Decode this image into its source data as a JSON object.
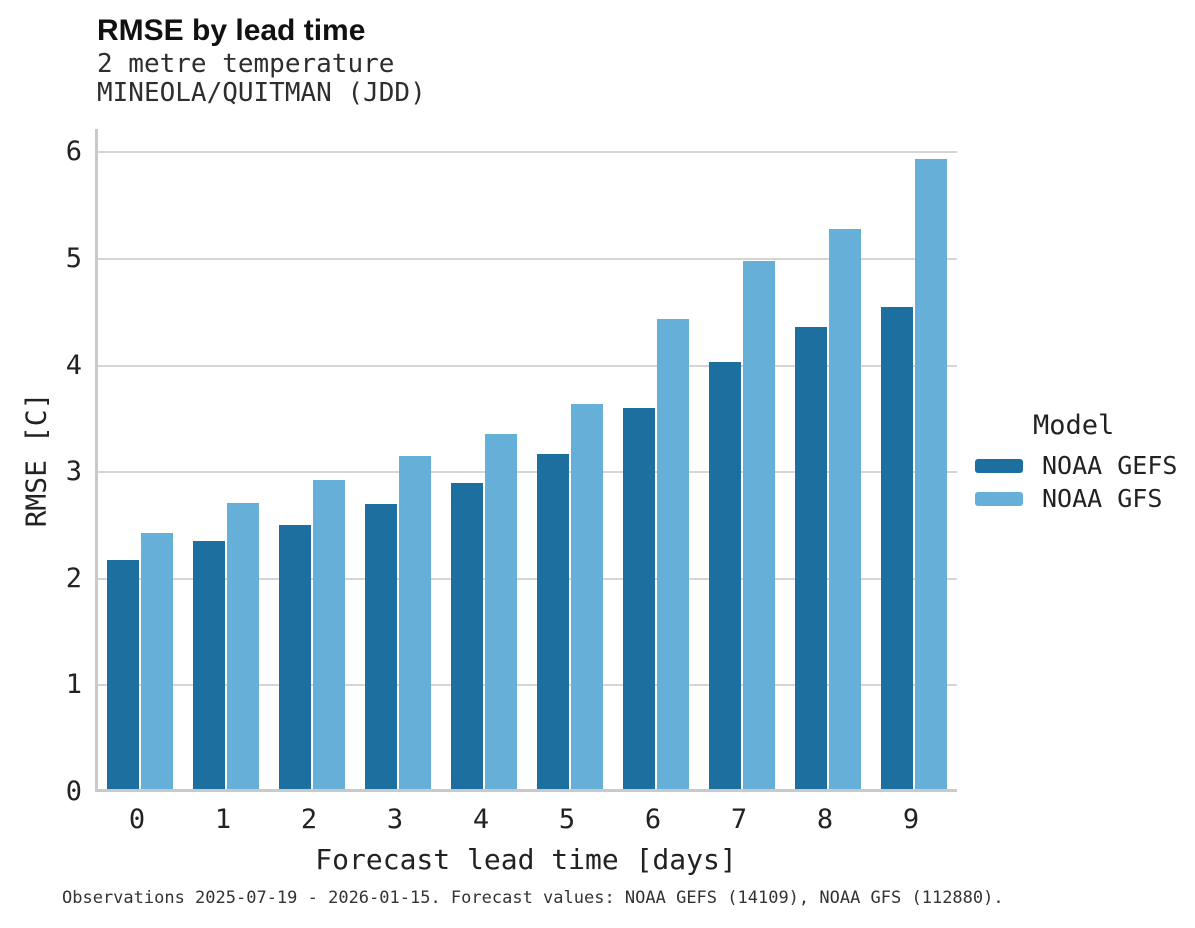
{
  "header": {
    "title": "RMSE by lead time",
    "subtitle_line1": "2 metre temperature",
    "subtitle_line2": "MINEOLA/QUITMAN (JDD)"
  },
  "chart_data": {
    "type": "bar",
    "title": "RMSE by lead time",
    "subtitle": [
      "2 metre temperature",
      "MINEOLA/QUITMAN (JDD)"
    ],
    "categories": [
      "0",
      "1",
      "2",
      "3",
      "4",
      "5",
      "6",
      "7",
      "8",
      "9"
    ],
    "series": [
      {
        "name": "NOAA GEFS",
        "color": "#1d6fa0",
        "values": [
          2.15,
          2.33,
          2.48,
          2.67,
          2.87,
          3.14,
          3.57,
          4.01,
          4.33,
          4.52
        ]
      },
      {
        "name": "NOAA GFS",
        "color": "#66afd8",
        "values": [
          2.4,
          2.68,
          2.9,
          3.12,
          3.33,
          3.61,
          4.41,
          4.95,
          5.25,
          5.91
        ]
      }
    ],
    "xlabel": "Forecast lead time [days]",
    "ylabel": "RMSE [C]",
    "ylim": [
      0,
      6.22
    ],
    "yticks": [
      0,
      1,
      2,
      3,
      4,
      5,
      6
    ],
    "grid": true,
    "legend_position": "right",
    "gridline_color": "#d5d5d5",
    "spine_color": "#c9c9c9"
  },
  "legend": {
    "title": "Model",
    "items": [
      {
        "label": "NOAA GEFS",
        "color": "#1d6fa0"
      },
      {
        "label": "NOAA GFS",
        "color": "#66afd8"
      }
    ]
  },
  "footer": {
    "text": "Observations 2025-07-19 - 2026-01-15. Forecast values: NOAA GEFS (14109), NOAA GFS (112880)."
  }
}
